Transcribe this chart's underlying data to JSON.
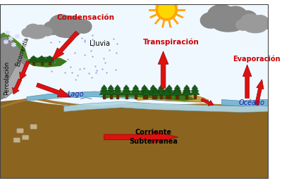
{
  "background_color": "#ffffff",
  "sky_color": "#f0f8ff",
  "ground_top_color": "#a07830",
  "ground_mid_color": "#8B6420",
  "ground_deep_color": "#6B4810",
  "water_color": "#7ab8d4",
  "water_light_color": "#b0d8e8",
  "ocean_color": "#7ab8d4",
  "sand_color": "#c8a040",
  "mountain_color": "#888888",
  "mountain_light": "#aaaaaa",
  "cloud_dark": "#909090",
  "cloud_mid": "#a8a8a8",
  "sun_outer": "#FFA500",
  "sun_inner": "#FFD700",
  "tree_dark": "#1a5e1a",
  "tree_mid": "#226622",
  "trunk_color": "#5a3000",
  "arrow_color": "#cc0000",
  "arrow_fill": "#dd1111",
  "labels": {
    "condensacion": "Condensación",
    "lluvia": "Lluvia",
    "transpiracion": "Transpiración",
    "evaporacion": "Evaporación",
    "lago": "Lago",
    "oceano": "Océano",
    "corriente": "Corriente\nSubterranea",
    "percolacion": "Percolación",
    "escorrentia": "Escorrentía"
  },
  "label_colors": {
    "condensacion": "#cc0000",
    "lluvia": "#000000",
    "transpiracion": "#cc0000",
    "evaporacion": "#cc0000",
    "lago": "#1a1aaa",
    "oceano": "#1a1aaa",
    "corriente": "#000000",
    "percolacion": "#000000",
    "escorrentia": "#000000"
  },
  "figsize": [
    4.0,
    2.6
  ],
  "dpi": 100
}
